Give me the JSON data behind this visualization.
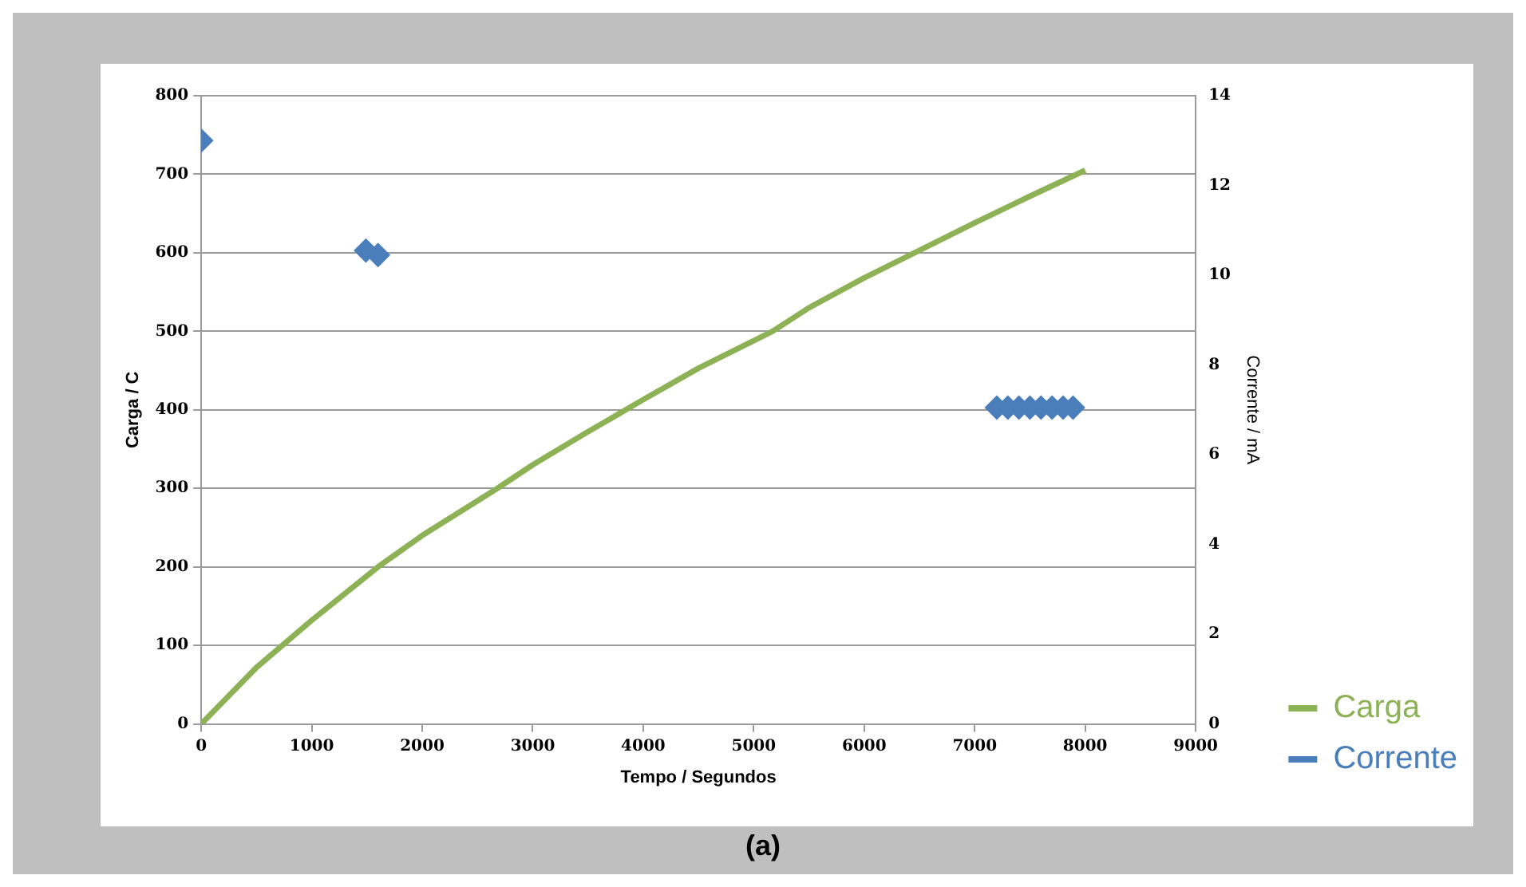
{
  "chart_data": {
    "type": "line",
    "xlabel": "Tempo / Segundos",
    "ylabel": "Carga / C",
    "y2label": "Corrente / mA",
    "annotations": [
      "(a)"
    ],
    "xlim": [
      0,
      9000
    ],
    "xticks": [
      0,
      1000,
      2000,
      3000,
      4000,
      5000,
      6000,
      7000,
      8000,
      9000
    ],
    "ylim": [
      0,
      800
    ],
    "yticks": [
      0,
      100,
      200,
      300,
      400,
      500,
      600,
      700,
      800
    ],
    "y2lim": [
      0,
      14
    ],
    "y2ticks": [
      0,
      2,
      4,
      6,
      8,
      10,
      12,
      14
    ],
    "grid": "y",
    "legend": "bottom right",
    "series": [
      {
        "name": "Carga",
        "type": "line",
        "color": "#8db255",
        "marker": "none",
        "line_style": "solid",
        "x": [
          0,
          500,
          1000,
          1600,
          2000,
          2680,
          3000,
          3500,
          4000,
          4500,
          5170,
          5500,
          6000,
          6500,
          7000,
          7500,
          8000
        ],
        "values": [
          0,
          72,
          132,
          200,
          240,
          300,
          330,
          372,
          413,
          453,
          500,
          530,
          568,
          603,
          638,
          672,
          705
        ]
      },
      {
        "name": "Corrente",
        "type": "scatter",
        "axis": "y2",
        "color": "#4a7ebb",
        "marker": "diamond",
        "x": [
          0,
          1490,
          1600,
          7200,
          7300,
          7400,
          7500,
          7600,
          7700,
          7800,
          7890
        ],
        "values": [
          13,
          10.55,
          10.45,
          7.05,
          7.05,
          7.05,
          7.05,
          7.05,
          7.05,
          7.05,
          7.05
        ]
      }
    ]
  }
}
